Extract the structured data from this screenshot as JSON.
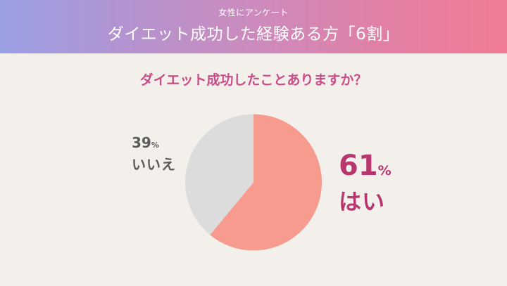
{
  "header": {
    "subtitle": "女性にアンケート",
    "title": "ダイエット成功した経験ある方「6割」",
    "gradient": [
      "#9aa0e4",
      "#f27c94"
    ]
  },
  "question": "ダイエット成功したことありますか？",
  "labels": {
    "no": {
      "value": "39",
      "unit": "%",
      "name": "いいえ",
      "color": "#5b5b5b"
    },
    "yes": {
      "value": "61",
      "unit": "%",
      "name": "はい",
      "color": "#b8376e"
    }
  },
  "chart_data": {
    "type": "pie",
    "title": "ダイエット成功したことありますか？",
    "categories": [
      "はい",
      "いいえ"
    ],
    "values": [
      61,
      39
    ],
    "unit": "%",
    "colors": [
      "#f79b8f",
      "#dcdcdc"
    ],
    "start_angle": "12 o'clock, clockwise",
    "legend": "none (direct labels)"
  }
}
